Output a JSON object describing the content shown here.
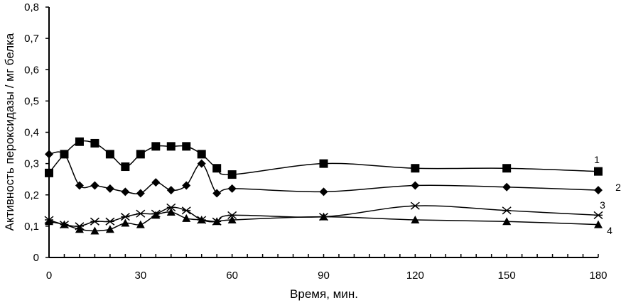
{
  "chart_data": {
    "type": "line",
    "title": "",
    "xlabel": "Время, мин.",
    "ylabel": "Активность пероксидазы / мг белка",
    "xlim": [
      0,
      180
    ],
    "ylim": [
      0,
      0.8
    ],
    "xticks": [
      "0",
      "30",
      "60",
      "90",
      "120",
      "150",
      "180"
    ],
    "yticks": [
      "0",
      "0,1",
      "0,2",
      "0,3",
      "0,4",
      "0,5",
      "0,6",
      "0,7",
      "0,8"
    ],
    "grid": false,
    "x": [
      0,
      5,
      10,
      15,
      20,
      25,
      30,
      35,
      40,
      45,
      50,
      55,
      60,
      90,
      120,
      150,
      180
    ],
    "series": [
      {
        "name": "1",
        "marker": "square",
        "values": [
          0.27,
          0.33,
          0.37,
          0.365,
          0.33,
          0.29,
          0.33,
          0.355,
          0.355,
          0.355,
          0.33,
          0.285,
          0.265,
          0.3,
          0.285,
          0.285,
          0.275
        ]
      },
      {
        "name": "2",
        "marker": "diamond",
        "values": [
          0.33,
          0.33,
          0.23,
          0.23,
          0.22,
          0.21,
          0.205,
          0.24,
          0.215,
          0.23,
          0.3,
          0.205,
          0.22,
          0.21,
          0.23,
          0.225,
          0.215
        ]
      },
      {
        "name": "3",
        "marker": "cross",
        "values": [
          0.12,
          0.105,
          0.1,
          0.115,
          0.115,
          0.13,
          0.14,
          0.14,
          0.16,
          0.15,
          0.12,
          0.115,
          0.135,
          0.13,
          0.165,
          0.15,
          0.135
        ]
      },
      {
        "name": "4",
        "marker": "triangle",
        "values": [
          0.115,
          0.105,
          0.09,
          0.085,
          0.09,
          0.11,
          0.105,
          0.135,
          0.145,
          0.125,
          0.12,
          0.115,
          0.12,
          0.13,
          0.12,
          0.115,
          0.105
        ]
      }
    ]
  }
}
